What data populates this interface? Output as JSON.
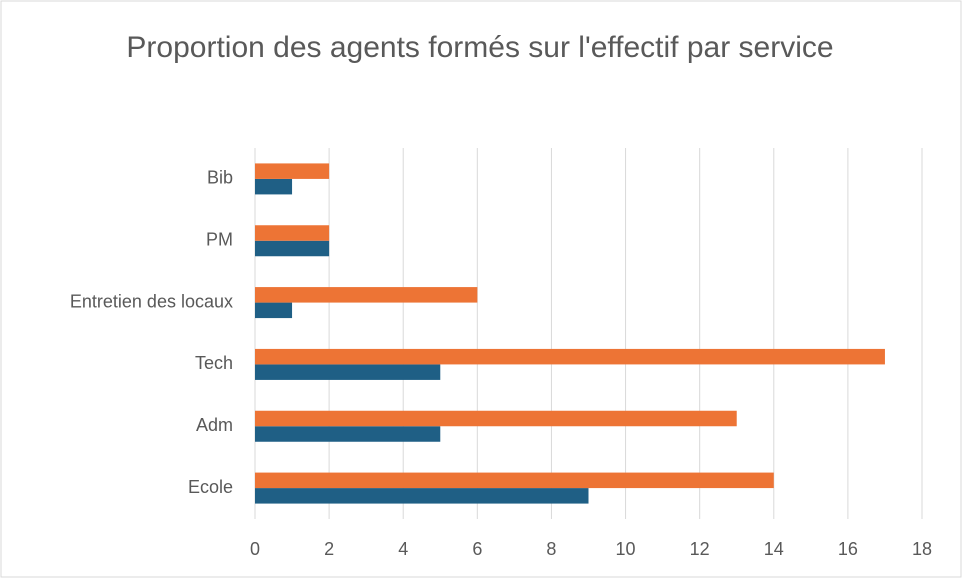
{
  "chart_data": {
    "type": "bar",
    "orientation": "horizontal",
    "title": "Proportion des agents formés sur l'effectif par service",
    "categories": [
      "Ecole",
      "Adm",
      "Tech",
      "Entretien des locaux",
      "PM",
      "Bib"
    ],
    "series": [
      {
        "color": "#1f5f85",
        "values": [
          9,
          5,
          5,
          1,
          2,
          1
        ]
      },
      {
        "color": "#ed7435",
        "values": [
          14,
          13,
          17,
          6,
          2,
          2
        ]
      }
    ],
    "xlim": [
      0,
      18
    ],
    "xticks": [
      0,
      2,
      4,
      6,
      8,
      10,
      12,
      14,
      16,
      18
    ],
    "grid": true
  }
}
